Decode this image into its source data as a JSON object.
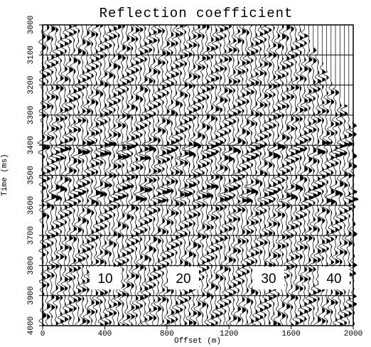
{
  "chart_data": {
    "type": "seismic",
    "title": "Reflection coefficient",
    "xlabel": "Offset (m)",
    "ylabel": "Time (ms)",
    "xlim": [
      0,
      2000
    ],
    "xticks": [
      0,
      400,
      800,
      1200,
      1600,
      2000
    ],
    "ylim": [
      4000,
      3000
    ],
    "yticks": [
      3000,
      3100,
      3200,
      3300,
      3400,
      3500,
      3600,
      3700,
      3800,
      3900,
      4000
    ],
    "grid": true,
    "color": "#000000",
    "annotations": [
      "10",
      "20",
      "30",
      "40"
    ]
  }
}
